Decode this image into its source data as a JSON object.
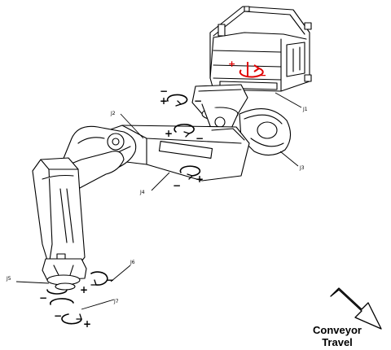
{
  "caption": {
    "line1": "Conveyor",
    "line2": "Travel"
  },
  "joint_labels": {
    "j1": "J1",
    "j2": "J2",
    "j3": "J3",
    "j4": "J4",
    "j5": "J5",
    "j6": "J6",
    "j7": "J7"
  },
  "signs": {
    "plus": "+",
    "minus": "−"
  },
  "colors": {
    "line": "#000000",
    "rotation_marker": "#e00000",
    "fill": "#ffffff"
  }
}
